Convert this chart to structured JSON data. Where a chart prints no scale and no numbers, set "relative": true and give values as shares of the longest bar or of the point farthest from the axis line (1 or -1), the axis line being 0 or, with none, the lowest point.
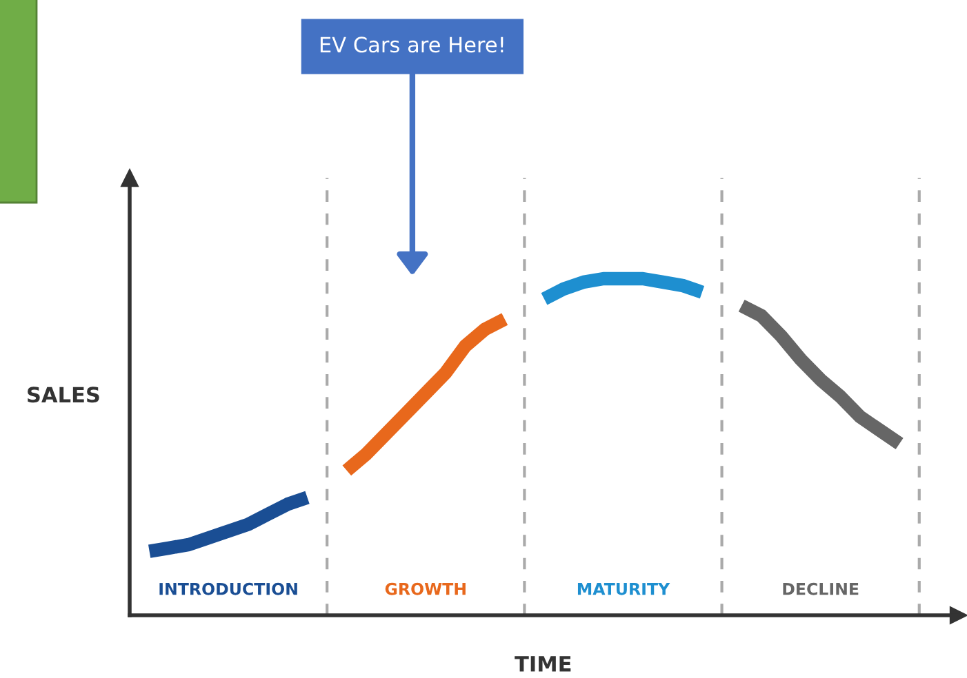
{
  "chart_data": {
    "type": "line",
    "relative": true,
    "xlabel": "TIME",
    "ylabel": "SALES",
    "categories": [
      null,
      null,
      null,
      null,
      null,
      null,
      null,
      null,
      null,
      null,
      null,
      null,
      null,
      null,
      null,
      null,
      null,
      null,
      null,
      null,
      null,
      null,
      null,
      null,
      null,
      null,
      null,
      null,
      null,
      null,
      null,
      null,
      null,
      null,
      null,
      null,
      null,
      null,
      null,
      null,
      null
    ],
    "series": [
      {
        "name": "INTRODUCTION",
        "color": "#1a4e94",
        "values": [
          null,
          0.19,
          0.2,
          0.21,
          0.23,
          0.25,
          0.27,
          0.3,
          0.33,
          0.35,
          null,
          null,
          null,
          null,
          null,
          null,
          null,
          null,
          null,
          null,
          null,
          null,
          null,
          null,
          null,
          null,
          null,
          null,
          null,
          null,
          null,
          null,
          null,
          null,
          null,
          null,
          null,
          null,
          null,
          null,
          null
        ]
      },
      {
        "name": "GROWTH",
        "color": "#e8681c",
        "values": [
          null,
          null,
          null,
          null,
          null,
          null,
          null,
          null,
          null,
          null,
          null,
          0.43,
          0.48,
          0.54,
          0.6,
          0.66,
          0.72,
          0.8,
          0.85,
          0.88,
          null,
          null,
          null,
          null,
          null,
          null,
          null,
          null,
          null,
          null,
          null,
          null,
          null,
          null,
          null,
          null,
          null,
          null,
          null,
          null,
          null
        ]
      },
      {
        "name": "MATURITY",
        "color": "#1e8fd0",
        "values": [
          null,
          null,
          null,
          null,
          null,
          null,
          null,
          null,
          null,
          null,
          null,
          null,
          null,
          null,
          null,
          null,
          null,
          null,
          null,
          null,
          null,
          0.94,
          0.97,
          0.99,
          1.0,
          1.0,
          1.0,
          0.99,
          0.98,
          0.96,
          null,
          null,
          null,
          null,
          null,
          null,
          null,
          null,
          null,
          null,
          null
        ]
      },
      {
        "name": "DECLINE",
        "color": "#666666",
        "values": [
          null,
          null,
          null,
          null,
          null,
          null,
          null,
          null,
          null,
          null,
          null,
          null,
          null,
          null,
          null,
          null,
          null,
          null,
          null,
          null,
          null,
          null,
          null,
          null,
          null,
          null,
          null,
          null,
          null,
          null,
          null,
          0.92,
          0.89,
          0.83,
          0.76,
          0.7,
          0.65,
          0.59,
          0.55,
          0.51,
          null
        ]
      }
    ],
    "annotations": [
      "EV Cars are Here!"
    ],
    "grid": "x",
    "legend": false
  }
}
